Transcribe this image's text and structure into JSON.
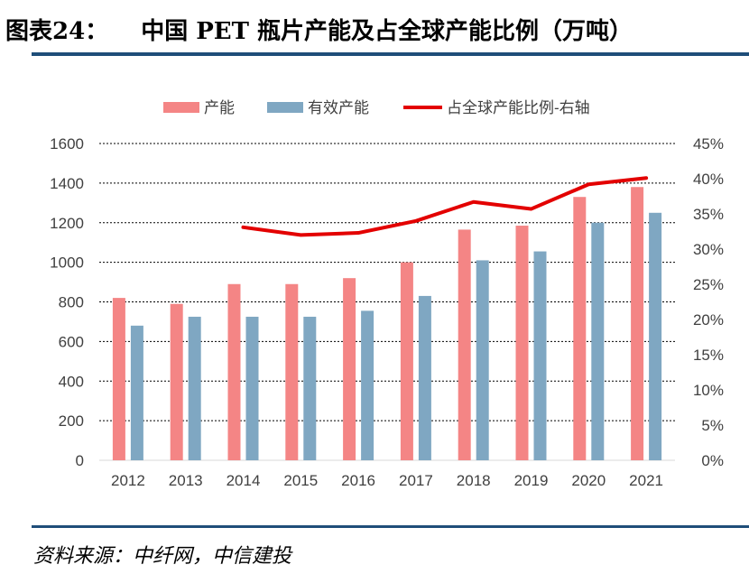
{
  "header": {
    "figure_number": "图表24：",
    "title": "中国 PET 瓶片产能及占全球产能比例（万吨）"
  },
  "footer": {
    "source": "资料来源：中纤网，中信建投"
  },
  "colors": {
    "capacity": "#f48585",
    "effective": "#7fa7c2",
    "share": "#e30000",
    "rule": "#1f4e79",
    "grid": "#000000"
  },
  "chart_data": {
    "type": "bar",
    "title": "中国 PET 瓶片产能及占全球产能比例（万吨）",
    "categories": [
      "2012",
      "2013",
      "2014",
      "2015",
      "2016",
      "2017",
      "2018",
      "2019",
      "2020",
      "2021"
    ],
    "series": [
      {
        "name": "产能",
        "type": "bar",
        "axis": "left",
        "values": [
          820,
          790,
          890,
          890,
          920,
          1000,
          1165,
          1185,
          1330,
          1380
        ]
      },
      {
        "name": "有效产能",
        "type": "bar",
        "axis": "left",
        "values": [
          680,
          725,
          725,
          725,
          755,
          830,
          1010,
          1055,
          1200,
          1250
        ]
      },
      {
        "name": "占全球产能比例-右轴",
        "type": "line",
        "axis": "right",
        "values": [
          null,
          null,
          0.331,
          0.32,
          0.323,
          0.34,
          0.367,
          0.357,
          0.392,
          0.401
        ]
      }
    ],
    "ylim": [
      0,
      1600
    ],
    "yticks": [
      "0",
      "200",
      "400",
      "600",
      "800",
      "1000",
      "1200",
      "1400",
      "1600"
    ],
    "y2lim": [
      0,
      0.45
    ],
    "y2ticks": [
      "0%",
      "5%",
      "10%",
      "15%",
      "20%",
      "25%",
      "30%",
      "35%",
      "40%",
      "45%"
    ],
    "grid": true,
    "legend_position": "top"
  }
}
